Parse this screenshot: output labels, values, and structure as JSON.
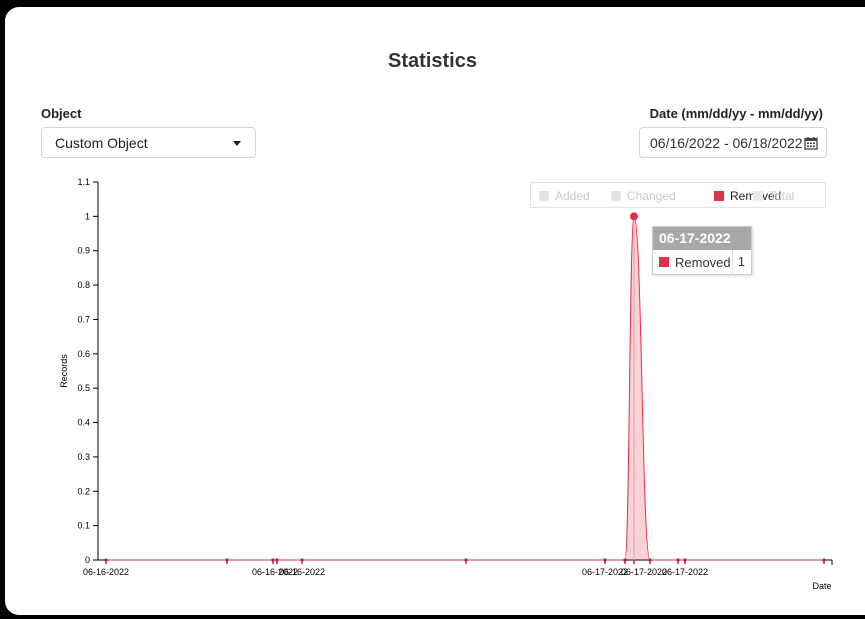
{
  "page": {
    "title": "Statistics"
  },
  "filters": {
    "object_label": "Object",
    "object_value": "Custom Object",
    "date_label": "Date (mm/dd/yy - mm/dd/yy)",
    "date_value": "06/16/2022 - 06/18/2022",
    "date_icon": "calendar-icon"
  },
  "tooltip": {
    "date": "06-17-2022",
    "series": "Removed",
    "value": "1"
  },
  "chart_data": {
    "type": "area",
    "xlabel": "Date",
    "ylabel": "Records",
    "ylim": [
      0,
      1.1
    ],
    "yticks": [
      "0",
      "0.1",
      "0.2",
      "0.3",
      "0.4",
      "0.5",
      "0.6",
      "0.7",
      "0.8",
      "0.9",
      "1",
      "1.1"
    ],
    "legend_placement": "top-right",
    "legend": [
      {
        "name": "Added",
        "color": "#dfe6e2",
        "active": false
      },
      {
        "name": "Changed",
        "color": "#e4e4e4",
        "active": false
      },
      {
        "name": "Removed",
        "color": "#e0334a",
        "active": true
      },
      {
        "name": "Total",
        "color": "#ebebeb",
        "active": false
      }
    ],
    "xtick_labels": [
      "06-16-2022",
      "06-16-2022",
      "06-16-2022",
      "06-17-2022",
      "06-17-2022",
      "06-17-2022"
    ],
    "series": [
      {
        "name": "Removed",
        "color": "#e0334a",
        "values": [
          0,
          0,
          0,
          0,
          0,
          0,
          0,
          0,
          1,
          0,
          0,
          0,
          0
        ]
      }
    ]
  }
}
